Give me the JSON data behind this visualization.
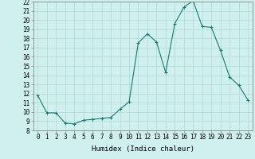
{
  "x": [
    0,
    1,
    2,
    3,
    4,
    5,
    6,
    7,
    8,
    9,
    10,
    11,
    12,
    13,
    14,
    15,
    16,
    17,
    18,
    19,
    20,
    21,
    22,
    23
  ],
  "y": [
    11.8,
    9.9,
    9.9,
    8.8,
    8.7,
    9.1,
    9.2,
    9.3,
    9.4,
    10.3,
    11.1,
    17.5,
    18.5,
    17.6,
    14.3,
    19.6,
    21.4,
    22.1,
    19.3,
    19.2,
    16.7,
    13.8,
    12.9,
    11.3
  ],
  "x_ticks": [
    0,
    1,
    2,
    3,
    4,
    5,
    6,
    7,
    8,
    9,
    10,
    11,
    12,
    13,
    14,
    15,
    16,
    17,
    18,
    19,
    20,
    21,
    22,
    23
  ],
  "x_tick_labels": [
    "0",
    "1",
    "2",
    "3",
    "4",
    "5",
    "6",
    "7",
    "8",
    "9",
    "10",
    "11",
    "12",
    "13",
    "14",
    "15",
    "16",
    "17",
    "18",
    "19",
    "20",
    "21",
    "22",
    "23"
  ],
  "y_min": 8,
  "y_max": 22,
  "y_ticks": [
    8,
    9,
    10,
    11,
    12,
    13,
    14,
    15,
    16,
    17,
    18,
    19,
    20,
    21,
    22
  ],
  "xlabel": "Humidex (Indice chaleur)",
  "line_color": "#1a7a6e",
  "marker_color": "#1a7a6e",
  "bg_color": "#cff0ee",
  "grid_color": "#afd8d5",
  "axis_color": "#555555",
  "label_fontsize": 6.5,
  "tick_fontsize": 5.5
}
